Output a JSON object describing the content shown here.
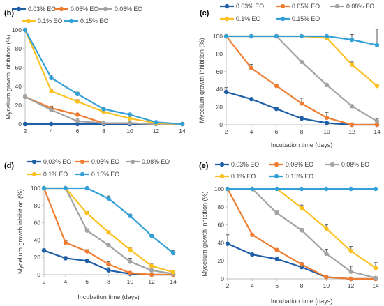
{
  "figure": {
    "colors": {
      "0.03% EO": "#1f5fa8",
      "0.05% EO": "#ee7d31",
      "0.08% EO": "#a3a3a3",
      "0.1% EO": "#fbc021",
      "0.15% EO": "#34a0d8",
      "axis": "#bfbfbf",
      "errorbar": "#595959"
    }
  },
  "chart_data": [
    {
      "type": "line",
      "panel": "(b)",
      "xlabel": "",
      "ylabel": "Mycelium growth inhibition (%)",
      "xlim": [
        2,
        14
      ],
      "ylim": [
        0,
        100
      ],
      "x_ticks": [
        2,
        4,
        6,
        8,
        10,
        12,
        14
      ],
      "y_ticks": [
        0,
        20,
        40,
        60,
        80,
        100
      ],
      "grid": false,
      "legend": "top, two rows",
      "x": [
        2,
        4,
        6,
        8,
        10,
        12,
        14
      ],
      "series": [
        {
          "name": "0.03% EO",
          "values": [
            0,
            0,
            0,
            0,
            0,
            0,
            0
          ],
          "err": [
            0,
            0,
            0,
            0,
            0,
            0,
            0
          ]
        },
        {
          "name": "0.05% EO",
          "values": [
            29,
            17,
            10,
            1,
            1,
            0,
            0
          ],
          "err": [
            2,
            2,
            3,
            1,
            1,
            0,
            0
          ]
        },
        {
          "name": "0.08% EO",
          "values": [
            29,
            15,
            3,
            1,
            1,
            0,
            0
          ],
          "err": [
            2,
            2,
            3,
            1,
            1,
            0,
            0
          ]
        },
        {
          "name": "0.1% EO",
          "values": [
            100,
            35,
            24,
            13,
            6,
            1,
            0
          ],
          "err": [
            0,
            2,
            2,
            2,
            1,
            1,
            0
          ]
        },
        {
          "name": "0.15% EO",
          "values": [
            100,
            49,
            32,
            16,
            10,
            2,
            0
          ],
          "err": [
            0,
            3,
            2,
            2,
            1,
            1,
            0
          ]
        }
      ]
    },
    {
      "type": "line",
      "panel": "(c)",
      "xlabel": "Incubation time (days)",
      "ylabel": "Mycelium growth inhibition (%)",
      "xlim": [
        2,
        14
      ],
      "ylim": [
        0,
        100
      ],
      "x_ticks": [
        2,
        4,
        6,
        8,
        10,
        12,
        14
      ],
      "y_ticks": [
        0,
        20,
        40,
        60,
        80,
        100
      ],
      "grid": false,
      "legend": "top, two rows",
      "x": [
        2,
        4,
        6,
        8,
        10,
        12,
        14
      ],
      "series": [
        {
          "name": "0.03% EO",
          "values": [
            37,
            29,
            18,
            7,
            2,
            0,
            0
          ],
          "err": [
            5,
            1,
            1,
            2,
            1,
            0,
            0
          ]
        },
        {
          "name": "0.05% EO",
          "values": [
            100,
            64,
            44,
            24,
            8,
            0,
            0
          ],
          "err": [
            0,
            4,
            1,
            6,
            6,
            0,
            0
          ]
        },
        {
          "name": "0.08% EO",
          "values": [
            100,
            100,
            100,
            71,
            45,
            21,
            4
          ],
          "err": [
            0,
            0,
            0,
            1,
            1,
            1,
            3
          ]
        },
        {
          "name": "0.1% EO",
          "values": [
            100,
            100,
            100,
            100,
            98,
            68,
            44
          ],
          "err": [
            0,
            0,
            0,
            0,
            1,
            3,
            2
          ]
        },
        {
          "name": "0.15% EO",
          "values": [
            100,
            100,
            100,
            100,
            100,
            96,
            90
          ],
          "err": [
            0,
            0,
            0,
            0,
            0,
            6,
            18
          ]
        }
      ]
    },
    {
      "type": "line",
      "panel": "(d)",
      "xlabel": "Incubation time (days)",
      "ylabel": "Mycelium growth inhibition (%)",
      "xlim": [
        2,
        14
      ],
      "ylim": [
        0,
        100
      ],
      "x_ticks": [
        2,
        4,
        6,
        8,
        10,
        12,
        14
      ],
      "y_ticks": [
        0,
        20,
        40,
        60,
        80,
        100
      ],
      "grid": false,
      "legend": "top, two rows",
      "x": [
        2,
        4,
        6,
        8,
        10,
        12,
        14
      ],
      "series": [
        {
          "name": "0.03% EO",
          "values": [
            28,
            19,
            16,
            5,
            1,
            0,
            0
          ],
          "err": [
            2,
            2,
            2,
            3,
            1,
            0,
            0
          ]
        },
        {
          "name": "0.05% EO",
          "values": [
            100,
            37,
            27,
            12,
            2,
            0,
            0
          ],
          "err": [
            0,
            2,
            2,
            3,
            1,
            0,
            0
          ]
        },
        {
          "name": "0.08% EO",
          "values": [
            100,
            100,
            51,
            34,
            15,
            5,
            1
          ],
          "err": [
            0,
            0,
            2,
            2,
            4,
            3,
            1
          ]
        },
        {
          "name": "0.1% EO",
          "values": [
            100,
            100,
            71,
            49,
            29,
            10,
            3
          ],
          "err": [
            0,
            0,
            2,
            1,
            2,
            3,
            2
          ]
        },
        {
          "name": "0.15% EO",
          "values": [
            100,
            100,
            100,
            88,
            68,
            45,
            25
          ],
          "err": [
            0,
            0,
            0,
            3,
            2,
            2,
            3
          ]
        }
      ]
    },
    {
      "type": "line",
      "panel": "(e)",
      "xlabel": "Incubation time (days)",
      "ylabel": "Mycelium growth inhibition (%)",
      "xlim": [
        2,
        14
      ],
      "ylim": [
        0,
        100
      ],
      "x_ticks": [
        2,
        4,
        6,
        8,
        10,
        12,
        14
      ],
      "y_ticks": [
        0,
        20,
        40,
        60,
        80,
        100
      ],
      "grid": false,
      "legend": "top, two rows",
      "x": [
        2,
        4,
        6,
        8,
        10,
        12,
        14
      ],
      "series": [
        {
          "name": "0.03% EO",
          "values": [
            39,
            27,
            22,
            13,
            2,
            0,
            0
          ],
          "err": [
            10,
            1,
            1,
            2,
            1,
            0,
            0
          ]
        },
        {
          "name": "0.05% EO",
          "values": [
            100,
            49,
            32,
            16,
            2,
            0,
            0
          ],
          "err": [
            0,
            1,
            1,
            2,
            1,
            0,
            0
          ]
        },
        {
          "name": "0.08% EO",
          "values": [
            100,
            100,
            73,
            54,
            28,
            8,
            1
          ],
          "err": [
            0,
            0,
            3,
            2,
            5,
            6,
            1
          ]
        },
        {
          "name": "0.1% EO",
          "values": [
            100,
            100,
            100,
            79,
            56,
            31,
            12
          ],
          "err": [
            0,
            0,
            0,
            3,
            4,
            5,
            6
          ]
        },
        {
          "name": "0.15% EO",
          "values": [
            100,
            100,
            100,
            100,
            100,
            100,
            100
          ],
          "err": [
            0,
            0,
            0,
            0,
            0,
            0,
            0
          ]
        }
      ]
    }
  ]
}
